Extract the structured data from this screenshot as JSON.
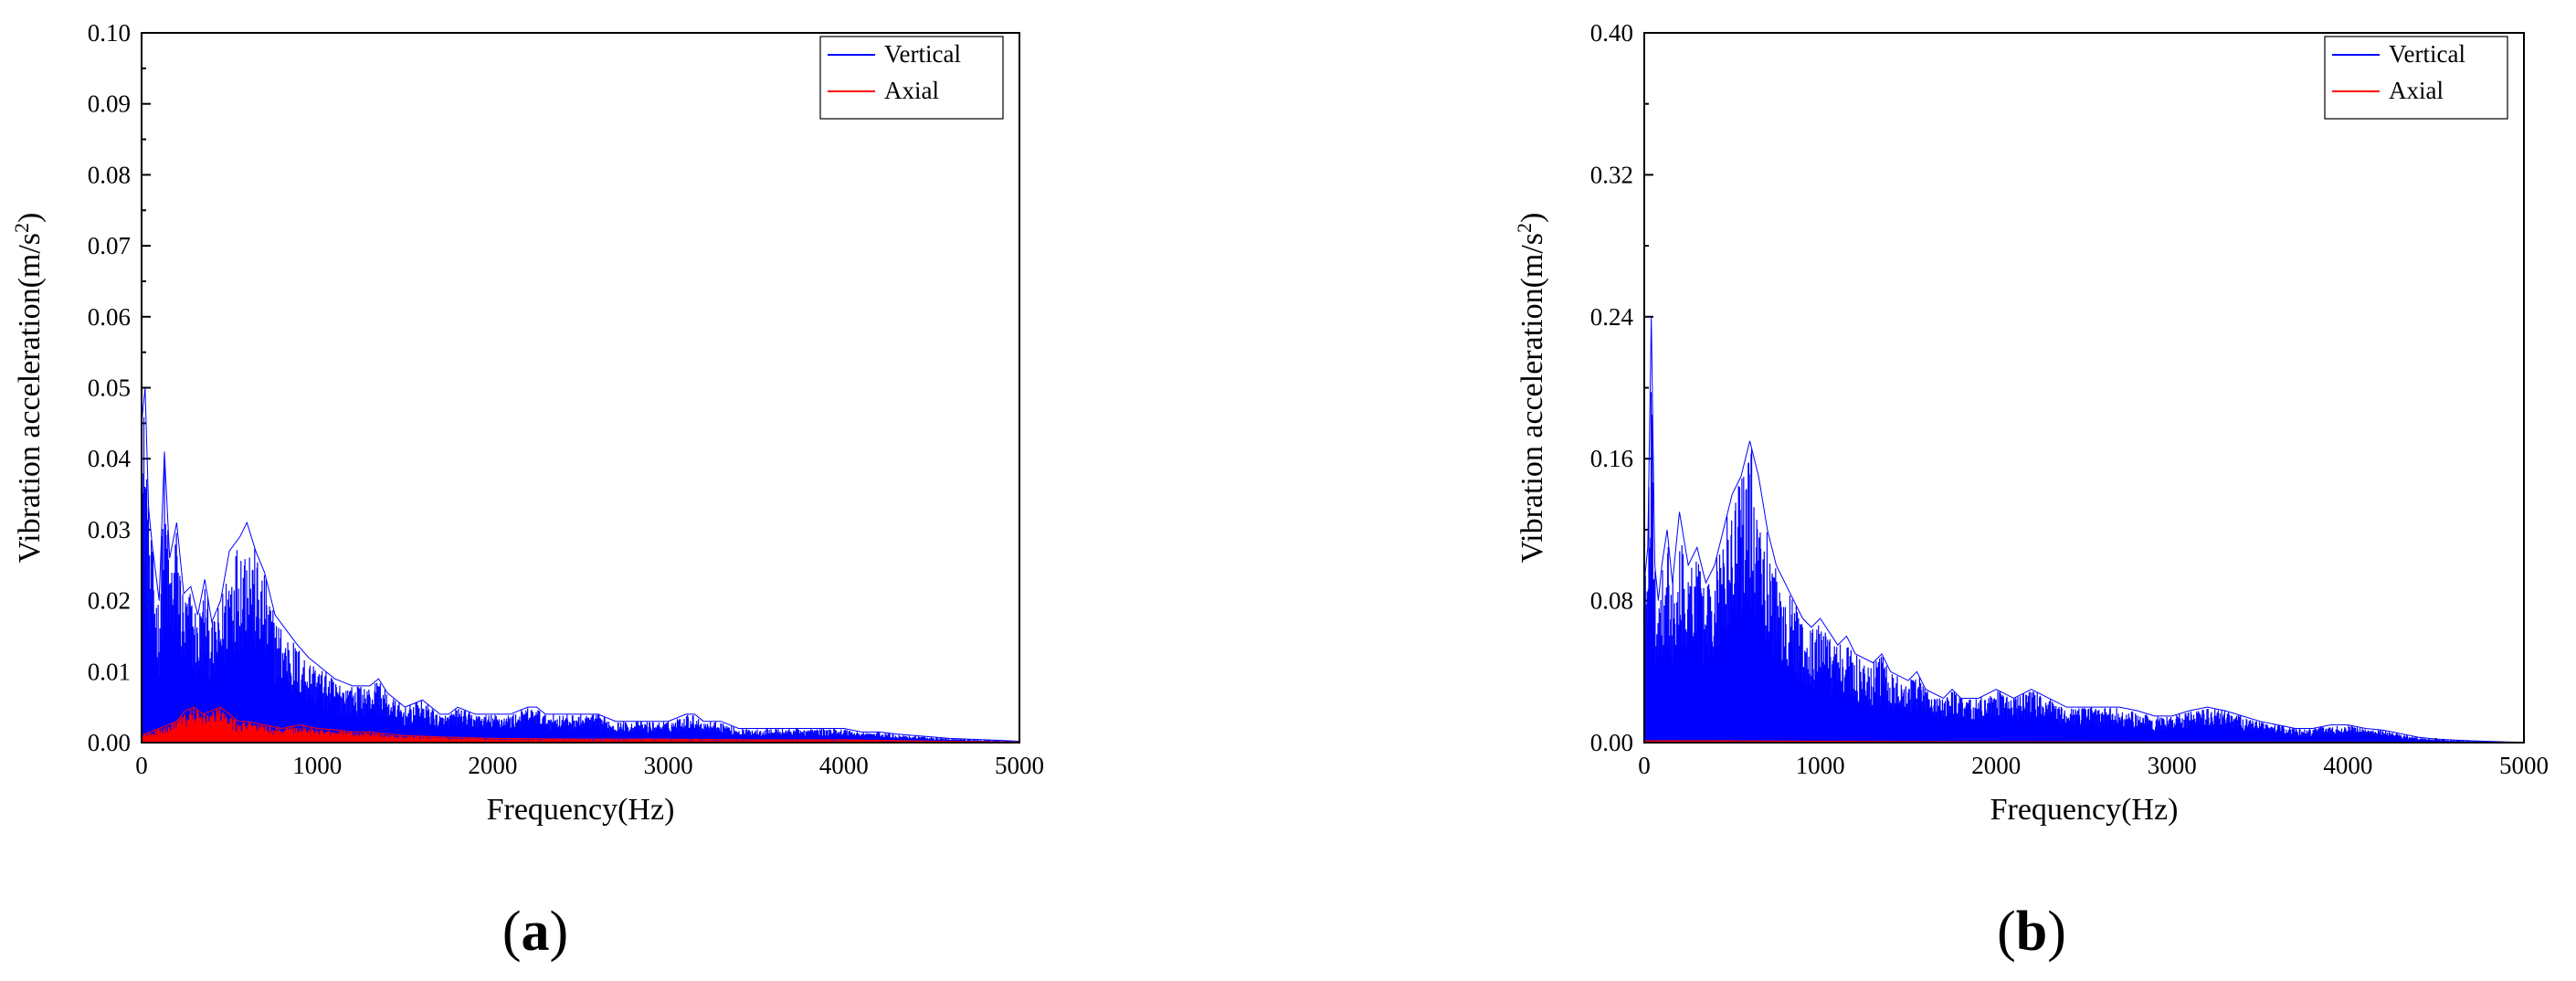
{
  "chart_data": [
    {
      "type": "area",
      "panel_label": "a",
      "xlabel": "Frequency(Hz)",
      "ylabel_base": "Vibration acceleration(m/s",
      "ylabel_sup": "2",
      "ylabel_close": ")",
      "xlim": [
        0,
        5000
      ],
      "ylim": [
        0,
        0.1
      ],
      "xticks": [
        "0",
        "1000",
        "2000",
        "3000",
        "4000",
        "5000"
      ],
      "xtick_values": [
        0,
        1000,
        2000,
        3000,
        4000,
        5000
      ],
      "yticks": [
        "0.00",
        "0.01",
        "0.02",
        "0.03",
        "0.04",
        "0.05",
        "0.06",
        "0.07",
        "0.08",
        "0.09",
        "0.10"
      ],
      "ytick_values": [
        0,
        0.01,
        0.02,
        0.03,
        0.04,
        0.05,
        0.06,
        0.07,
        0.08,
        0.09,
        0.1
      ],
      "legend_position": "top-right",
      "series": [
        {
          "name": "Vertical",
          "color": "#0000ff",
          "x": [
            0,
            20,
            40,
            60,
            80,
            100,
            130,
            160,
            200,
            240,
            280,
            320,
            360,
            400,
            450,
            500,
            560,
            600,
            650,
            700,
            760,
            820,
            880,
            950,
            1000,
            1100,
            1200,
            1300,
            1350,
            1400,
            1500,
            1600,
            1700,
            1750,
            1800,
            1900,
            2000,
            2100,
            2200,
            2250,
            2300,
            2400,
            2500,
            2600,
            2700,
            2800,
            2900,
            3000,
            3100,
            3150,
            3200,
            3300,
            3400,
            3500,
            3600,
            3700,
            3800,
            3900,
            4000,
            4100,
            4200,
            4300,
            4400,
            4500,
            4600,
            4700,
            4800,
            4900,
            5000
          ],
          "values": [
            0.045,
            0.05,
            0.033,
            0.028,
            0.024,
            0.02,
            0.041,
            0.026,
            0.031,
            0.021,
            0.022,
            0.018,
            0.023,
            0.017,
            0.02,
            0.027,
            0.029,
            0.031,
            0.027,
            0.024,
            0.018,
            0.016,
            0.014,
            0.012,
            0.011,
            0.009,
            0.008,
            0.008,
            0.009,
            0.007,
            0.005,
            0.006,
            0.004,
            0.004,
            0.005,
            0.004,
            0.004,
            0.004,
            0.005,
            0.005,
            0.004,
            0.004,
            0.004,
            0.004,
            0.003,
            0.003,
            0.003,
            0.003,
            0.004,
            0.004,
            0.003,
            0.003,
            0.002,
            0.002,
            0.002,
            0.002,
            0.002,
            0.002,
            0.002,
            0.0015,
            0.0015,
            0.0012,
            0.001,
            0.0008,
            0.0006,
            0.0005,
            0.0004,
            0.0003,
            0.0002
          ]
        },
        {
          "name": "Axial",
          "color": "#ff0000",
          "x": [
            0,
            50,
            100,
            150,
            200,
            250,
            300,
            350,
            400,
            450,
            500,
            550,
            600,
            700,
            800,
            900,
            1000,
            1100,
            1200,
            1300,
            1400,
            1500,
            1700,
            2000,
            2500,
            3000,
            3500,
            4000,
            4500,
            5000
          ],
          "values": [
            0.001,
            0.0015,
            0.002,
            0.0025,
            0.003,
            0.0045,
            0.005,
            0.004,
            0.0045,
            0.005,
            0.004,
            0.003,
            0.003,
            0.0025,
            0.002,
            0.0025,
            0.002,
            0.0018,
            0.0015,
            0.0015,
            0.0012,
            0.001,
            0.0008,
            0.0006,
            0.0005,
            0.0005,
            0.0004,
            0.0004,
            0.0002,
            0.0001
          ]
        }
      ]
    },
    {
      "type": "area",
      "panel_label": "b",
      "xlabel": "Frequency(Hz)",
      "ylabel_base": "Vibration acceleration(m/s",
      "ylabel_sup": "2",
      "ylabel_close": ")",
      "xlim": [
        0,
        5000
      ],
      "ylim": [
        0,
        0.4
      ],
      "xticks": [
        "0",
        "1000",
        "2000",
        "3000",
        "4000",
        "5000"
      ],
      "xtick_values": [
        0,
        1000,
        2000,
        3000,
        4000,
        5000
      ],
      "yticks": [
        "0.00",
        "0.08",
        "0.16",
        "0.24",
        "0.32",
        "0.40"
      ],
      "ytick_values": [
        0,
        0.08,
        0.16,
        0.24,
        0.32,
        0.4
      ],
      "legend_position": "top-right",
      "series": [
        {
          "name": "Vertical",
          "color": "#0000ff",
          "x": [
            0,
            20,
            40,
            60,
            80,
            100,
            130,
            160,
            200,
            250,
            300,
            350,
            400,
            450,
            500,
            550,
            600,
            650,
            700,
            750,
            800,
            850,
            900,
            950,
            1000,
            1100,
            1150,
            1200,
            1300,
            1350,
            1400,
            1500,
            1550,
            1600,
            1700,
            1750,
            1800,
            1900,
            2000,
            2100,
            2200,
            2300,
            2400,
            2500,
            2600,
            2700,
            2800,
            2900,
            3000,
            3100,
            3200,
            3300,
            3400,
            3500,
            3600,
            3700,
            3800,
            3900,
            4000,
            4100,
            4200,
            4300,
            4400,
            4500,
            4600,
            4700,
            4800,
            4900,
            5000
          ],
          "values": [
            0.09,
            0.11,
            0.24,
            0.1,
            0.08,
            0.1,
            0.12,
            0.09,
            0.13,
            0.1,
            0.11,
            0.09,
            0.1,
            0.12,
            0.14,
            0.15,
            0.17,
            0.15,
            0.12,
            0.1,
            0.09,
            0.08,
            0.07,
            0.065,
            0.07,
            0.055,
            0.06,
            0.05,
            0.045,
            0.05,
            0.04,
            0.035,
            0.04,
            0.03,
            0.025,
            0.03,
            0.025,
            0.025,
            0.03,
            0.025,
            0.03,
            0.025,
            0.02,
            0.02,
            0.02,
            0.02,
            0.018,
            0.015,
            0.015,
            0.018,
            0.02,
            0.018,
            0.015,
            0.012,
            0.01,
            0.008,
            0.008,
            0.01,
            0.01,
            0.008,
            0.007,
            0.005,
            0.003,
            0.002,
            0.0015,
            0.001,
            0.0007,
            0.0004,
            0.0002
          ]
        },
        {
          "name": "Axial",
          "color": "#ff0000",
          "x": [
            0,
            500,
            1000,
            2000,
            3000,
            4000,
            5000
          ],
          "values": [
            0.001,
            0.001,
            0.0008,
            0.0005,
            0.0004,
            0.0003,
            0.0001
          ]
        }
      ]
    }
  ]
}
